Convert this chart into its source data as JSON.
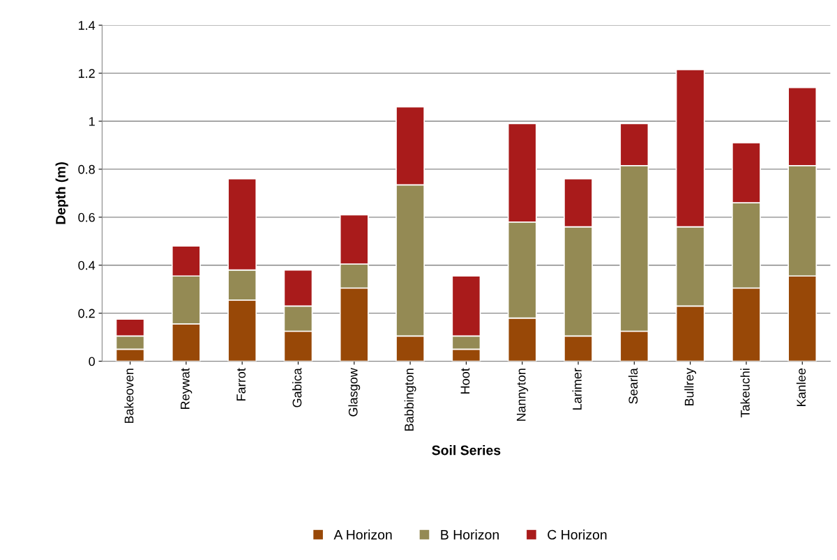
{
  "chart_data": {
    "type": "bar",
    "stacked": true,
    "xlabel": "Soil Series",
    "ylabel": "Depth (m)",
    "categories": [
      "Bakeoven",
      "Reywat",
      "Farrot",
      "Gabica",
      "Glasgow",
      "Babbington",
      "Hoot",
      "Nannyton",
      "Larimer",
      "Searla",
      "Bullrey",
      "Takeuchi",
      "Kanlee"
    ],
    "series": [
      {
        "name": "A Horizon",
        "color": "#984807",
        "values": [
          0.05,
          0.155,
          0.255,
          0.125,
          0.305,
          0.105,
          0.05,
          0.18,
          0.105,
          0.125,
          0.23,
          0.305,
          0.355
        ]
      },
      {
        "name": "B Horizon",
        "color": "#948a54",
        "values": [
          0.055,
          0.2,
          0.125,
          0.105,
          0.1,
          0.63,
          0.055,
          0.4,
          0.455,
          0.69,
          0.33,
          0.355,
          0.46
        ]
      },
      {
        "name": "C Horizon",
        "color": "#a91b1b",
        "values": [
          0.07,
          0.125,
          0.38,
          0.15,
          0.205,
          0.325,
          0.25,
          0.41,
          0.2,
          0.175,
          0.655,
          0.25,
          0.325
        ]
      }
    ],
    "ylim": [
      0,
      1.4
    ],
    "yticks": [
      0,
      0.2,
      0.4,
      0.6,
      0.8,
      1,
      1.2,
      1.4
    ],
    "grid": "y",
    "legend": "bottom"
  }
}
